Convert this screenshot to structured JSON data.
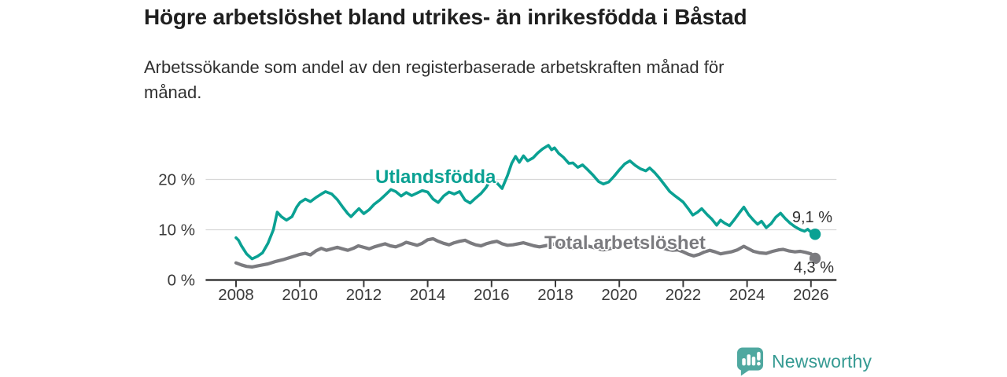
{
  "header": {
    "title": "Högre arbetslöshet bland utrikes- än inrikesfödda i Båstad",
    "subtitle": "Arbetssökande som andel av den registerbaserade arbetskraften månad för månad."
  },
  "footer": {
    "brand": "Newsworthy"
  },
  "colors": {
    "teal": "#0aa193",
    "gray": "#7b7b7f",
    "axis": "#3a3a3a",
    "grid": "#d8d8d8",
    "logo_teal": "#4fa8a0",
    "wordmark_teal": "#359a92"
  },
  "chart_data": {
    "type": "line",
    "title": "Högre arbetslöshet bland utrikes- än inrikesfödda i Båstad",
    "subtitle": "Arbetssökande som andel av den registerbaserade arbetskraften månad för månad.",
    "unit": "%",
    "grid": "horizontal",
    "legend_position": "inline-labels",
    "x_axis": {
      "range": [
        2007.05,
        2026.8
      ],
      "ticks": [
        2008,
        2010,
        2012,
        2014,
        2016,
        2018,
        2020,
        2022,
        2024,
        2026
      ]
    },
    "y_axis": {
      "range": [
        0,
        27
      ],
      "ticks": [
        {
          "value": 0,
          "label": "0 %"
        },
        {
          "value": 10,
          "label": "10 %"
        },
        {
          "value": 20,
          "label": "20 %"
        }
      ]
    },
    "series": [
      {
        "name": "Utlandsfödda",
        "color": "#0aa193",
        "end_value": 9.1,
        "end_label": "9,1 %",
        "points": [
          [
            2008.0,
            8.4
          ],
          [
            2008.08,
            7.9
          ],
          [
            2008.17,
            6.8
          ],
          [
            2008.33,
            5.2
          ],
          [
            2008.5,
            4.2
          ],
          [
            2008.67,
            4.7
          ],
          [
            2008.83,
            5.4
          ],
          [
            2009.0,
            7.3
          ],
          [
            2009.17,
            10.0
          ],
          [
            2009.29,
            13.5
          ],
          [
            2009.42,
            12.6
          ],
          [
            2009.58,
            11.9
          ],
          [
            2009.75,
            12.6
          ],
          [
            2009.9,
            14.5
          ],
          [
            2010.0,
            15.4
          ],
          [
            2010.17,
            16.1
          ],
          [
            2010.33,
            15.6
          ],
          [
            2010.5,
            16.4
          ],
          [
            2010.67,
            17.1
          ],
          [
            2010.8,
            17.6
          ],
          [
            2011.0,
            17.1
          ],
          [
            2011.17,
            16.0
          ],
          [
            2011.33,
            14.6
          ],
          [
            2011.5,
            13.2
          ],
          [
            2011.6,
            12.6
          ],
          [
            2011.75,
            13.6
          ],
          [
            2011.85,
            14.2
          ],
          [
            2012.0,
            13.2
          ],
          [
            2012.17,
            14.0
          ],
          [
            2012.33,
            15.1
          ],
          [
            2012.5,
            15.9
          ],
          [
            2012.67,
            16.9
          ],
          [
            2012.85,
            18.0
          ],
          [
            2013.0,
            17.6
          ],
          [
            2013.17,
            16.7
          ],
          [
            2013.33,
            17.4
          ],
          [
            2013.5,
            16.8
          ],
          [
            2013.67,
            17.3
          ],
          [
            2013.83,
            17.8
          ],
          [
            2014.0,
            17.5
          ],
          [
            2014.17,
            16.1
          ],
          [
            2014.33,
            15.4
          ],
          [
            2014.5,
            16.7
          ],
          [
            2014.67,
            17.5
          ],
          [
            2014.83,
            17.1
          ],
          [
            2015.0,
            17.6
          ],
          [
            2015.17,
            15.9
          ],
          [
            2015.33,
            15.3
          ],
          [
            2015.5,
            16.3
          ],
          [
            2015.67,
            17.2
          ],
          [
            2015.83,
            18.4
          ],
          [
            2016.0,
            20.3
          ],
          [
            2016.17,
            19.3
          ],
          [
            2016.33,
            18.2
          ],
          [
            2016.5,
            20.8
          ],
          [
            2016.63,
            23.2
          ],
          [
            2016.75,
            24.6
          ],
          [
            2016.87,
            23.4
          ],
          [
            2017.0,
            24.7
          ],
          [
            2017.13,
            23.7
          ],
          [
            2017.3,
            24.3
          ],
          [
            2017.45,
            25.3
          ],
          [
            2017.6,
            26.1
          ],
          [
            2017.78,
            26.8
          ],
          [
            2017.88,
            25.9
          ],
          [
            2017.97,
            26.3
          ],
          [
            2018.1,
            25.2
          ],
          [
            2018.25,
            24.4
          ],
          [
            2018.42,
            23.2
          ],
          [
            2018.55,
            23.3
          ],
          [
            2018.7,
            22.4
          ],
          [
            2018.85,
            22.9
          ],
          [
            2019.0,
            22.0
          ],
          [
            2019.17,
            20.9
          ],
          [
            2019.35,
            19.6
          ],
          [
            2019.5,
            19.1
          ],
          [
            2019.67,
            19.5
          ],
          [
            2019.83,
            20.6
          ],
          [
            2020.0,
            21.9
          ],
          [
            2020.17,
            23.1
          ],
          [
            2020.33,
            23.7
          ],
          [
            2020.5,
            22.8
          ],
          [
            2020.67,
            22.1
          ],
          [
            2020.83,
            21.7
          ],
          [
            2020.95,
            22.3
          ],
          [
            2021.1,
            21.4
          ],
          [
            2021.25,
            20.3
          ],
          [
            2021.42,
            18.9
          ],
          [
            2021.58,
            17.6
          ],
          [
            2021.75,
            16.7
          ],
          [
            2021.9,
            16.0
          ],
          [
            2022.0,
            15.5
          ],
          [
            2022.17,
            14.1
          ],
          [
            2022.3,
            12.9
          ],
          [
            2022.45,
            13.5
          ],
          [
            2022.58,
            14.2
          ],
          [
            2022.75,
            13.0
          ],
          [
            2022.9,
            12.1
          ],
          [
            2023.05,
            10.9
          ],
          [
            2023.17,
            11.9
          ],
          [
            2023.3,
            11.3
          ],
          [
            2023.45,
            10.8
          ],
          [
            2023.6,
            12.0
          ],
          [
            2023.75,
            13.3
          ],
          [
            2023.9,
            14.5
          ],
          [
            2024.05,
            13.0
          ],
          [
            2024.2,
            11.9
          ],
          [
            2024.33,
            11.1
          ],
          [
            2024.45,
            11.7
          ],
          [
            2024.6,
            10.4
          ],
          [
            2024.75,
            11.2
          ],
          [
            2024.9,
            12.5
          ],
          [
            2025.05,
            13.3
          ],
          [
            2025.2,
            12.2
          ],
          [
            2025.35,
            11.3
          ],
          [
            2025.5,
            10.6
          ],
          [
            2025.67,
            10.0
          ],
          [
            2025.8,
            9.7
          ],
          [
            2025.9,
            10.1
          ],
          [
            2026.0,
            9.5
          ],
          [
            2026.13,
            9.1
          ]
        ]
      },
      {
        "name": "Total arbetslöshet",
        "color": "#7b7b7f",
        "end_value": 4.3,
        "end_label": "4,3 %",
        "points": [
          [
            2008.0,
            3.4
          ],
          [
            2008.17,
            3.0
          ],
          [
            2008.33,
            2.7
          ],
          [
            2008.5,
            2.6
          ],
          [
            2008.67,
            2.8
          ],
          [
            2008.83,
            3.0
          ],
          [
            2009.0,
            3.2
          ],
          [
            2009.25,
            3.7
          ],
          [
            2009.5,
            4.1
          ],
          [
            2009.75,
            4.6
          ],
          [
            2010.0,
            5.1
          ],
          [
            2010.17,
            5.3
          ],
          [
            2010.33,
            5.0
          ],
          [
            2010.5,
            5.8
          ],
          [
            2010.67,
            6.3
          ],
          [
            2010.83,
            5.9
          ],
          [
            2011.0,
            6.2
          ],
          [
            2011.17,
            6.5
          ],
          [
            2011.33,
            6.2
          ],
          [
            2011.5,
            5.9
          ],
          [
            2011.67,
            6.3
          ],
          [
            2011.83,
            6.8
          ],
          [
            2012.0,
            6.5
          ],
          [
            2012.17,
            6.2
          ],
          [
            2012.33,
            6.6
          ],
          [
            2012.5,
            6.9
          ],
          [
            2012.67,
            7.2
          ],
          [
            2012.83,
            6.8
          ],
          [
            2013.0,
            6.6
          ],
          [
            2013.17,
            7.0
          ],
          [
            2013.33,
            7.5
          ],
          [
            2013.5,
            7.2
          ],
          [
            2013.67,
            6.9
          ],
          [
            2013.83,
            7.3
          ],
          [
            2014.0,
            8.0
          ],
          [
            2014.17,
            8.2
          ],
          [
            2014.33,
            7.7
          ],
          [
            2014.5,
            7.3
          ],
          [
            2014.67,
            7.0
          ],
          [
            2014.83,
            7.4
          ],
          [
            2015.0,
            7.7
          ],
          [
            2015.17,
            7.9
          ],
          [
            2015.33,
            7.4
          ],
          [
            2015.5,
            7.0
          ],
          [
            2015.67,
            6.8
          ],
          [
            2015.83,
            7.2
          ],
          [
            2016.0,
            7.5
          ],
          [
            2016.17,
            7.7
          ],
          [
            2016.33,
            7.2
          ],
          [
            2016.5,
            6.9
          ],
          [
            2016.67,
            7.0
          ],
          [
            2016.83,
            7.2
          ],
          [
            2017.0,
            7.4
          ],
          [
            2017.17,
            7.1
          ],
          [
            2017.33,
            6.8
          ],
          [
            2017.5,
            6.6
          ],
          [
            2017.67,
            6.8
          ],
          [
            2017.83,
            7.0
          ],
          [
            2018.0,
            7.2
          ],
          [
            2018.17,
            6.9
          ],
          [
            2018.33,
            6.6
          ],
          [
            2018.5,
            6.3
          ],
          [
            2018.67,
            6.5
          ],
          [
            2018.83,
            6.7
          ],
          [
            2019.0,
            6.8
          ],
          [
            2019.17,
            6.5
          ],
          [
            2019.33,
            6.2
          ],
          [
            2019.5,
            6.0
          ],
          [
            2019.67,
            6.2
          ],
          [
            2019.83,
            6.4
          ],
          [
            2020.0,
            6.6
          ],
          [
            2020.17,
            7.0
          ],
          [
            2020.33,
            7.3
          ],
          [
            2020.5,
            7.0
          ],
          [
            2020.67,
            6.7
          ],
          [
            2020.83,
            6.9
          ],
          [
            2021.0,
            7.0
          ],
          [
            2021.17,
            6.7
          ],
          [
            2021.33,
            6.4
          ],
          [
            2021.5,
            6.1
          ],
          [
            2021.67,
            5.9
          ],
          [
            2021.83,
            6.0
          ],
          [
            2022.0,
            5.6
          ],
          [
            2022.17,
            5.1
          ],
          [
            2022.33,
            4.8
          ],
          [
            2022.5,
            5.1
          ],
          [
            2022.67,
            5.6
          ],
          [
            2022.83,
            5.9
          ],
          [
            2023.0,
            5.6
          ],
          [
            2023.17,
            5.2
          ],
          [
            2023.33,
            5.4
          ],
          [
            2023.5,
            5.6
          ],
          [
            2023.7,
            6.0
          ],
          [
            2023.9,
            6.7
          ],
          [
            2024.05,
            6.2
          ],
          [
            2024.2,
            5.7
          ],
          [
            2024.4,
            5.4
          ],
          [
            2024.6,
            5.3
          ],
          [
            2024.8,
            5.7
          ],
          [
            2025.0,
            6.0
          ],
          [
            2025.13,
            6.1
          ],
          [
            2025.3,
            5.8
          ],
          [
            2025.5,
            5.6
          ],
          [
            2025.67,
            5.7
          ],
          [
            2025.83,
            5.5
          ],
          [
            2026.0,
            5.2
          ],
          [
            2026.13,
            4.3
          ]
        ]
      }
    ]
  }
}
